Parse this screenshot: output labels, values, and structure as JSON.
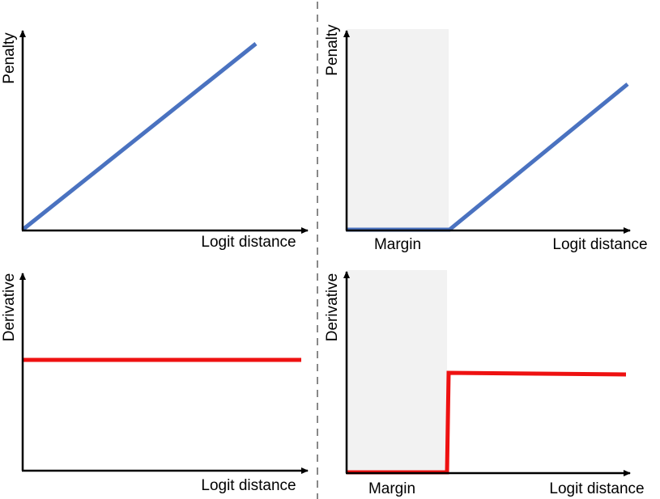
{
  "panels": [
    {
      "y_label": "Penalty",
      "x_label": "Logit distance"
    },
    {
      "y_label": "Penalty",
      "x_label": "Logit distance",
      "margin_label": "Margin"
    },
    {
      "y_label": "Derivative",
      "x_label": "Logit distance"
    },
    {
      "y_label": "Derivative",
      "x_label": "Logit distance",
      "margin_label": "Margin"
    }
  ]
}
